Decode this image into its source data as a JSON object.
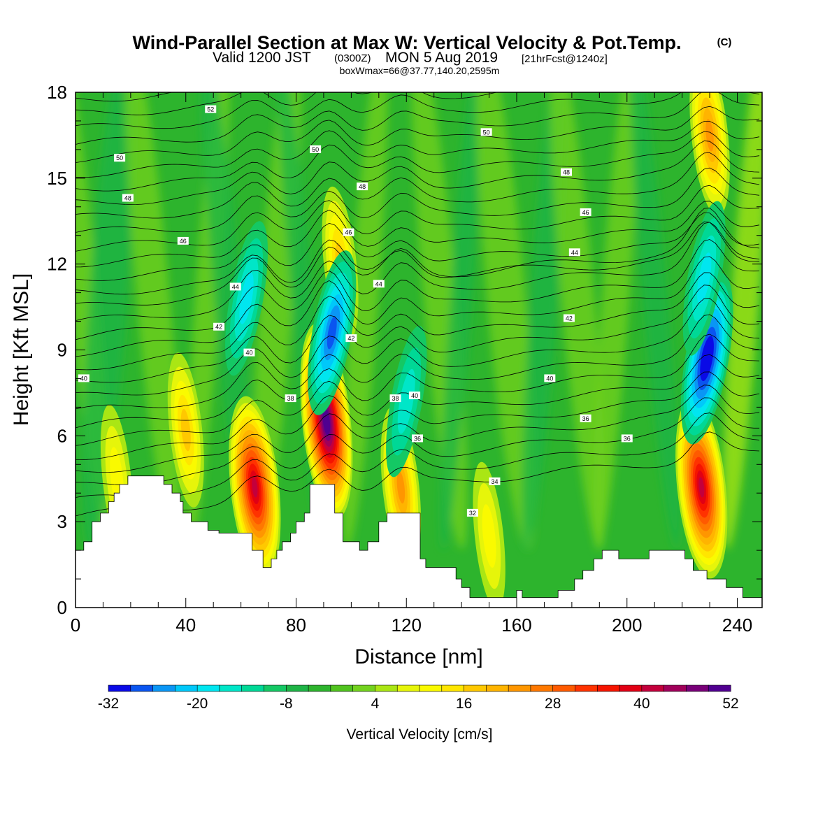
{
  "title": {
    "main": "Wind-Parallel Section at Max W: Vertical Velocity & Pot.Temp.",
    "copyright": "(C)",
    "valid_prefix": "Valid 1200 JST",
    "valid_z": "(0300Z)",
    "valid_date": "MON 5 Aug 2019",
    "forecast": "[21hrFcst@1240z]",
    "box": "boxWmax=66@37.77,140.20,2595m"
  },
  "colors": {
    "background_field": "#2db42d",
    "terrain": "#ffffff",
    "contour": "#000000"
  },
  "chart_data": {
    "type": "heatmap",
    "xlabel": "Distance [nm]",
    "ylabel": "Height [Kft MSL]",
    "xlim": [
      0,
      249
    ],
    "ylim": [
      0,
      18
    ],
    "x_ticks": [
      "0",
      "40",
      "80",
      "120",
      "160",
      "200",
      "240"
    ],
    "y_ticks": [
      "0",
      "3",
      "6",
      "9",
      "12",
      "15",
      "18"
    ],
    "colorbar": {
      "title": "Vertical Velocity [cm/s]",
      "tick_labels": [
        "-32",
        "-20",
        "-8",
        "4",
        "16",
        "28",
        "40",
        "52"
      ],
      "levels": [
        -32,
        -29,
        -26,
        -23,
        -20,
        -17,
        -14,
        -11,
        -8,
        -5,
        -2,
        1,
        4,
        7,
        10,
        13,
        16,
        19,
        22,
        25,
        28,
        31,
        34,
        37,
        40,
        43,
        46,
        49,
        52
      ],
      "colors": [
        "#0a0ae6",
        "#0a55f0",
        "#0a96f5",
        "#00c8fa",
        "#00e6f0",
        "#00e6c8",
        "#00d896",
        "#14c864",
        "#1eb446",
        "#2db42d",
        "#50c31e",
        "#73d21e",
        "#aae614",
        "#e6f50a",
        "#fafa00",
        "#ffe600",
        "#ffc800",
        "#ffb400",
        "#ff9600",
        "#ff7800",
        "#ff5a00",
        "#ff3200",
        "#f51400",
        "#e10014",
        "#c3003c",
        "#a0005a",
        "#780078",
        "#500090"
      ]
    },
    "updrafts": [
      {
        "x": 65,
        "y_center": 4.2,
        "peak_w": 40
      },
      {
        "x": 91,
        "y_center": 6.5,
        "peak_w": 52
      },
      {
        "x": 118,
        "y_center": 4.2,
        "peak_w": 22
      },
      {
        "x": 227,
        "y_center": 4.2,
        "peak_w": 40
      },
      {
        "x": 230,
        "y_center": 16.5,
        "peak_w": 22
      },
      {
        "x": 96,
        "y_center": 12,
        "peak_w": 16
      },
      {
        "x": 40,
        "y_center": 6.2,
        "peak_w": 16
      },
      {
        "x": 15,
        "y_center": 4.5,
        "peak_w": 10
      },
      {
        "x": 150,
        "y_center": 2.5,
        "peak_w": 10
      }
    ],
    "downdrafts": [
      {
        "x": 93,
        "y_center": 9.6,
        "peak_w": -26
      },
      {
        "x": 229,
        "y_center": 8.7,
        "peak_w": -32
      },
      {
        "x": 228,
        "y_center": 11.5,
        "peak_w": -17
      },
      {
        "x": 120,
        "y_center": 7.2,
        "peak_w": -14
      },
      {
        "x": 62,
        "y_center": 10.8,
        "peak_w": -17
      }
    ],
    "terrain_kft": [
      [
        0,
        2.0
      ],
      [
        3,
        2.0
      ],
      [
        3,
        2.3
      ],
      [
        6,
        2.3
      ],
      [
        6,
        3.0
      ],
      [
        9,
        3.0
      ],
      [
        9,
        3.3
      ],
      [
        12,
        3.3
      ],
      [
        12,
        3.7
      ],
      [
        14,
        3.7
      ],
      [
        14,
        4.0
      ],
      [
        16,
        4.0
      ],
      [
        16,
        4.3
      ],
      [
        19,
        4.3
      ],
      [
        19,
        4.6
      ],
      [
        32,
        4.6
      ],
      [
        32,
        4.3
      ],
      [
        35,
        4.3
      ],
      [
        35,
        4.0
      ],
      [
        38,
        4.0
      ],
      [
        38,
        3.7
      ],
      [
        39,
        3.7
      ],
      [
        39,
        3.3
      ],
      [
        42,
        3.3
      ],
      [
        42,
        3.0
      ],
      [
        48,
        3.0
      ],
      [
        48,
        2.7
      ],
      [
        52,
        2.7
      ],
      [
        52,
        2.6
      ],
      [
        64,
        2.6
      ],
      [
        64,
        2.0
      ],
      [
        68,
        2.0
      ],
      [
        68,
        1.4
      ],
      [
        71,
        1.4
      ],
      [
        71,
        1.7
      ],
      [
        73,
        1.7
      ],
      [
        73,
        2.0
      ],
      [
        75,
        2.0
      ],
      [
        75,
        2.3
      ],
      [
        78,
        2.3
      ],
      [
        78,
        2.6
      ],
      [
        80,
        2.6
      ],
      [
        80,
        3.0
      ],
      [
        83,
        3.0
      ],
      [
        83,
        3.3
      ],
      [
        85,
        3.3
      ],
      [
        85,
        4.3
      ],
      [
        94,
        4.3
      ],
      [
        94,
        3.3
      ],
      [
        97,
        3.3
      ],
      [
        97,
        2.3
      ],
      [
        103,
        2.3
      ],
      [
        103,
        2.0
      ],
      [
        106,
        2.0
      ],
      [
        106,
        2.3
      ],
      [
        110,
        2.3
      ],
      [
        110,
        3.0
      ],
      [
        113,
        3.0
      ],
      [
        113,
        3.3
      ],
      [
        125,
        3.3
      ],
      [
        125,
        1.7
      ],
      [
        127,
        1.7
      ],
      [
        127,
        1.4
      ],
      [
        138,
        1.4
      ],
      [
        138,
        1.0
      ],
      [
        140,
        1.0
      ],
      [
        140,
        0.7
      ],
      [
        143,
        0.7
      ],
      [
        143,
        0.35
      ],
      [
        160,
        0.35
      ],
      [
        160,
        0.6
      ],
      [
        162,
        0.6
      ],
      [
        162,
        0.35
      ],
      [
        175,
        0.35
      ],
      [
        175,
        0.6
      ],
      [
        181,
        0.6
      ],
      [
        181,
        1.0
      ],
      [
        184,
        1.0
      ],
      [
        184,
        1.3
      ],
      [
        188,
        1.3
      ],
      [
        188,
        1.7
      ],
      [
        191,
        1.7
      ],
      [
        191,
        2.0
      ],
      [
        197,
        2.0
      ],
      [
        197,
        1.7
      ],
      [
        208,
        1.7
      ],
      [
        208,
        2.0
      ],
      [
        221,
        2.0
      ],
      [
        221,
        1.7
      ],
      [
        224,
        1.7
      ],
      [
        224,
        1.3
      ],
      [
        229,
        1.3
      ],
      [
        229,
        1.0
      ],
      [
        236,
        1.0
      ],
      [
        236,
        0.7
      ],
      [
        242,
        0.7
      ],
      [
        242,
        0.35
      ],
      [
        249,
        0.35
      ]
    ],
    "isentrope_labels": [
      {
        "text": "52",
        "x": 49,
        "y": 17.4
      },
      {
        "text": "50",
        "x": 16,
        "y": 15.7
      },
      {
        "text": "50",
        "x": 87,
        "y": 16.0
      },
      {
        "text": "50",
        "x": 149,
        "y": 16.6
      },
      {
        "text": "48",
        "x": 19,
        "y": 14.3
      },
      {
        "text": "48",
        "x": 104,
        "y": 14.7
      },
      {
        "text": "48",
        "x": 178,
        "y": 15.2
      },
      {
        "text": "46",
        "x": 39,
        "y": 12.8
      },
      {
        "text": "46",
        "x": 99,
        "y": 13.1
      },
      {
        "text": "46",
        "x": 185,
        "y": 13.8
      },
      {
        "text": "44",
        "x": 58,
        "y": 11.2
      },
      {
        "text": "44",
        "x": 110,
        "y": 11.3
      },
      {
        "text": "44",
        "x": 181,
        "y": 12.4
      },
      {
        "text": "42",
        "x": 52,
        "y": 9.8
      },
      {
        "text": "42",
        "x": 100,
        "y": 9.4
      },
      {
        "text": "42",
        "x": 179,
        "y": 10.1
      },
      {
        "text": "40",
        "x": 3,
        "y": 8.0
      },
      {
        "text": "40",
        "x": 63,
        "y": 8.9
      },
      {
        "text": "40",
        "x": 123,
        "y": 7.4
      },
      {
        "text": "40",
        "x": 172,
        "y": 8.0
      },
      {
        "text": "38",
        "x": 78,
        "y": 7.3
      },
      {
        "text": "38",
        "x": 116,
        "y": 7.3
      },
      {
        "text": "36",
        "x": 124,
        "y": 5.9
      },
      {
        "text": "36",
        "x": 185,
        "y": 6.6
      },
      {
        "text": "36",
        "x": 200,
        "y": 5.9
      },
      {
        "text": "34",
        "x": 152,
        "y": 4.4
      },
      {
        "text": "32",
        "x": 144,
        "y": 3.3
      }
    ]
  }
}
